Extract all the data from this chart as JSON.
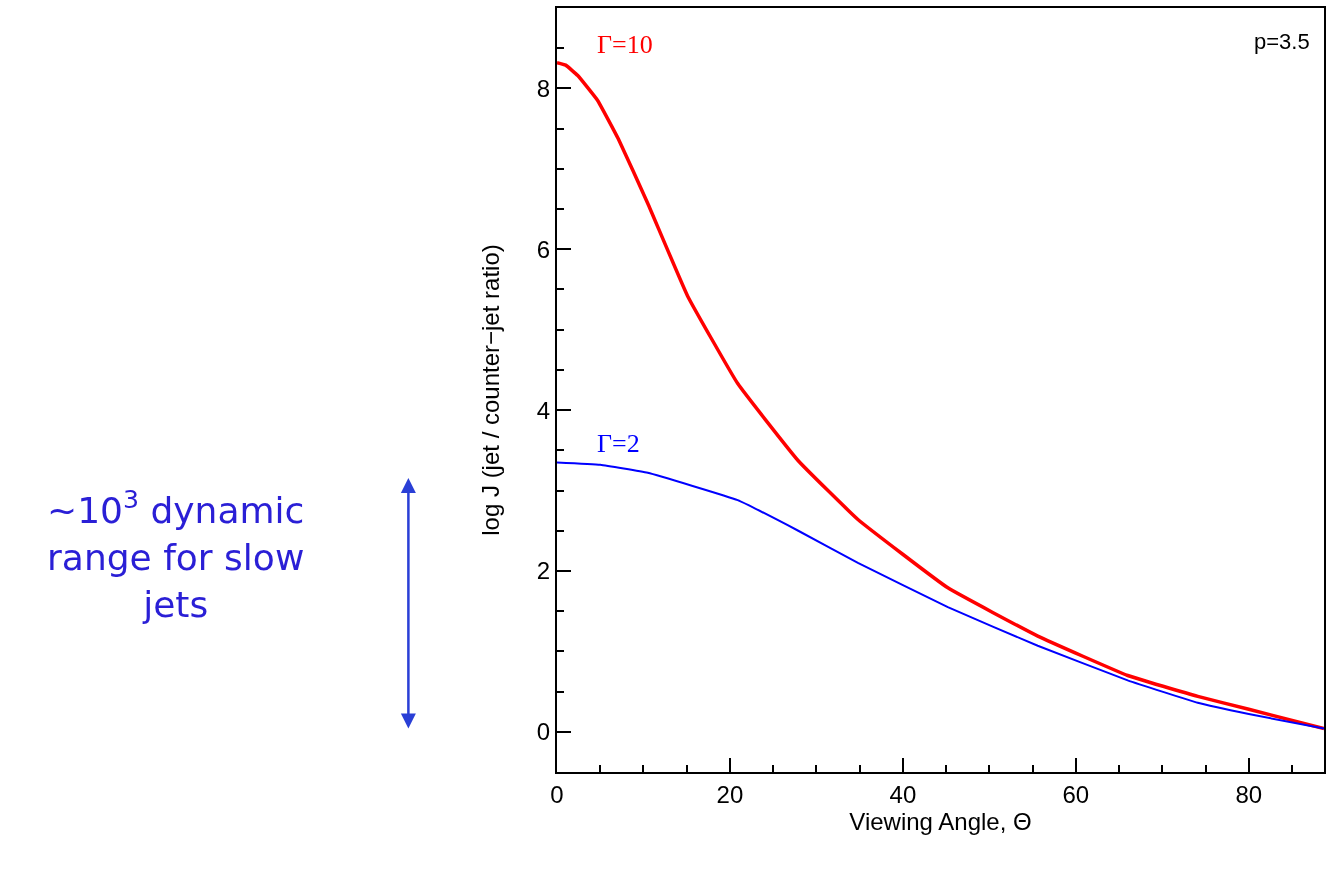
{
  "chart_data": {
    "type": "line",
    "xlabel": "Viewing Angle, Θ",
    "ylabel": "log J (jet / counter−jet ratio)",
    "xlim": [
      0,
      88.7
    ],
    "xticks": [
      0,
      20,
      40,
      60,
      80
    ],
    "ylim": [
      -0.5,
      9
    ],
    "yticks": [
      0,
      2,
      4,
      6,
      8
    ],
    "legend": false,
    "marker": "none",
    "line_style": "solid",
    "series": [
      {
        "name": "Γ=10",
        "color": "#ff0000",
        "x": [
          0,
          1,
          2.4,
          4.7,
          7.1,
          10.5,
          15.1,
          20.9,
          27.9,
          34.8,
          45.2,
          55.6,
          66,
          74.1,
          80,
          88.7
        ],
        "values": [
          8.32,
          8.29,
          8.16,
          7.85,
          7.37,
          6.57,
          5.42,
          4.33,
          3.37,
          2.64,
          1.79,
          1.19,
          0.7,
          0.44,
          0.28,
          0.04
        ]
      },
      {
        "name": "Γ=2",
        "color": "#0000ff",
        "x": [
          0,
          5,
          10.5,
          20.9,
          27.9,
          34.8,
          45.2,
          55.6,
          66,
          74.1,
          80,
          88.7
        ],
        "values": [
          3.35,
          3.32,
          3.22,
          2.88,
          2.5,
          2.1,
          1.55,
          1.07,
          0.64,
          0.36,
          0.22,
          0.04
        ]
      }
    ],
    "annotations": [
      "p=3.5",
      "~10$^{3}$ dynamic range for slow jets"
    ]
  }
}
